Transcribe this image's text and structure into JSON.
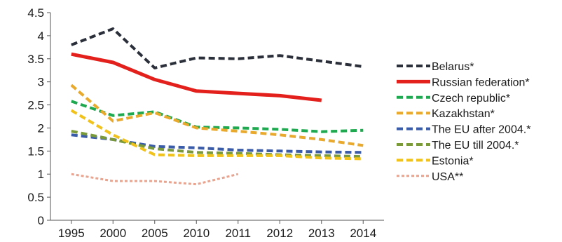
{
  "chart_data": {
    "type": "line",
    "title": "",
    "xlabel": "",
    "ylabel": "",
    "categories": [
      "1995",
      "2000",
      "2005",
      "2010",
      "2011",
      "2012",
      "2013",
      "2014"
    ],
    "ylim": [
      0,
      4.5
    ],
    "yticks": [
      "0",
      "0.5",
      "1",
      "1.5",
      "2",
      "2.5",
      "3",
      "3.5",
      "4",
      "4.5"
    ],
    "grid": false,
    "legend_position": "right",
    "series": [
      {
        "name": "Belarus*",
        "color": "#2a2f3a",
        "style": "dashed",
        "values": [
          3.8,
          4.15,
          3.3,
          3.52,
          3.5,
          3.57,
          3.45,
          3.33
        ]
      },
      {
        "name": "Russian federation*",
        "color": "#e3201b",
        "style": "solid",
        "values": [
          3.6,
          3.42,
          3.05,
          2.8,
          2.75,
          2.7,
          2.6,
          null
        ]
      },
      {
        "name": "Czech republic*",
        "color": "#1fa84f",
        "style": "dashed",
        "values": [
          2.58,
          2.27,
          2.35,
          2.02,
          2.0,
          1.97,
          1.92,
          1.95
        ]
      },
      {
        "name": "Kazakhstan*",
        "color": "#e8a92c",
        "style": "dashed",
        "values": [
          2.93,
          2.15,
          2.33,
          2.0,
          1.93,
          1.85,
          1.75,
          1.62
        ]
      },
      {
        "name": "The EU after 2004.*",
        "color": "#3a5ba8",
        "style": "dashed",
        "values": [
          1.85,
          1.75,
          1.6,
          1.57,
          1.52,
          1.5,
          1.48,
          1.47
        ]
      },
      {
        "name": "The EU till 2004.*",
        "color": "#7a9a3a",
        "style": "dashed",
        "values": [
          1.93,
          1.75,
          1.55,
          1.47,
          1.45,
          1.42,
          1.4,
          1.38
        ]
      },
      {
        "name": "Estonia*",
        "color": "#f0c21b",
        "style": "dashed",
        "values": [
          2.38,
          1.85,
          1.42,
          1.4,
          1.4,
          1.4,
          1.35,
          1.33
        ]
      },
      {
        "name": "USA**",
        "color": "#e9a48f",
        "style": "dotted",
        "values": [
          1.0,
          0.85,
          0.85,
          0.78,
          1.0,
          null,
          null,
          null
        ]
      }
    ]
  }
}
